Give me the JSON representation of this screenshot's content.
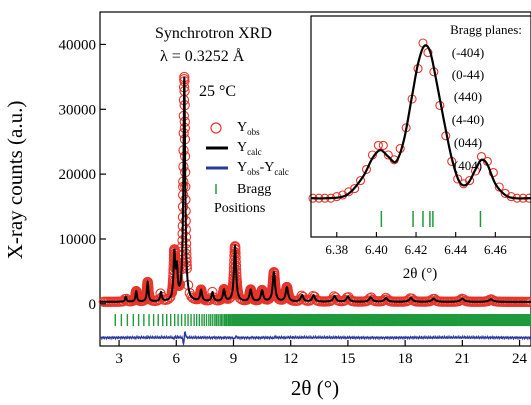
{
  "chart_data": [
    {
      "type": "line",
      "annotations": {
        "title": "Synchrotron XRD",
        "wavelength": "λ = 0.3252 Å",
        "temperature": "25 °C"
      },
      "xlabel": "2θ (°)",
      "ylabel": "X-ray counts (a.u.)",
      "xlim": [
        2,
        24.6
      ],
      "ylim": [
        -6500,
        45000
      ],
      "xticks": [
        3,
        6,
        9,
        12,
        15,
        18,
        21,
        24
      ],
      "yticks": [
        0,
        10000,
        20000,
        30000,
        40000
      ],
      "legend": {
        "placement": "top-right",
        "entries": [
          {
            "symbol": "circle",
            "main": "Y",
            "sub": "obs",
            "main2": "",
            "sub2": ""
          },
          {
            "symbol": "line-black",
            "main": "Y",
            "sub": "calc",
            "main2": "",
            "sub2": ""
          },
          {
            "symbol": "line-blue",
            "main": "Y",
            "sub": "obs",
            "main2": "-Y",
            "sub2": "calc"
          },
          {
            "symbol": "bar-green",
            "main": "Bragg",
            "sub": "",
            "main2": "",
            "sub2": ""
          },
          {
            "symbol": "none",
            "main": "Positions",
            "sub": "",
            "main2": "",
            "sub2": ""
          }
        ]
      },
      "colors": {
        "obs": "#e8352b",
        "calc": "#000000",
        "diff": "#2a3a9e",
        "bragg": "#1f9a3c"
      },
      "peaks": [
        {
          "x": 3.35,
          "y": 800
        },
        {
          "x": 3.9,
          "y": 1600
        },
        {
          "x": 4.5,
          "y": 3000
        },
        {
          "x": 5.2,
          "y": 1400
        },
        {
          "x": 5.9,
          "y": 7000
        },
        {
          "x": 6.03,
          "y": 4500
        },
        {
          "x": 6.42,
          "y": 34500
        },
        {
          "x": 7.3,
          "y": 1700
        },
        {
          "x": 7.9,
          "y": 1400
        },
        {
          "x": 8.5,
          "y": 1800
        },
        {
          "x": 9.08,
          "y": 8500
        },
        {
          "x": 9.9,
          "y": 1800
        },
        {
          "x": 10.5,
          "y": 1700
        },
        {
          "x": 11.12,
          "y": 4500
        },
        {
          "x": 11.8,
          "y": 2200
        },
        {
          "x": 12.6,
          "y": 1000
        },
        {
          "x": 13.2,
          "y": 1000
        },
        {
          "x": 14.3,
          "y": 900
        },
        {
          "x": 15.0,
          "y": 800
        },
        {
          "x": 16.2,
          "y": 700
        },
        {
          "x": 17.0,
          "y": 600
        },
        {
          "x": 18.3,
          "y": 600
        },
        {
          "x": 19.5,
          "y": 500
        },
        {
          "x": 21.0,
          "y": 500
        },
        {
          "x": 22.5,
          "y": 400
        }
      ],
      "baseline": 300,
      "bragg_tick_y": -2500,
      "difference_offset": -5200
    },
    {
      "type": "line",
      "inset": true,
      "xlabel": "2θ (°)",
      "xlim": [
        6.367,
        6.478
      ],
      "xticks": [
        6.38,
        6.4,
        6.42,
        6.44,
        6.46
      ],
      "ylim": [
        0,
        1.05
      ],
      "bragg_planes_title": "Bragg planes:",
      "bragg_planes": [
        "(-404)",
        "(0-44)",
        "(440)",
        "(4-40)",
        "(044)",
        "(404)"
      ],
      "bragg_positions": [
        6.4025,
        6.4185,
        6.4235,
        6.427,
        6.4285,
        6.4525
      ],
      "calc_x": [
        6.367,
        6.375,
        6.385,
        6.393,
        6.398,
        6.402,
        6.406,
        6.41,
        6.414,
        6.418,
        6.421,
        6.424,
        6.427,
        6.43,
        6.434,
        6.438,
        6.442,
        6.446,
        6.45,
        6.453,
        6.456,
        6.46,
        6.465,
        6.47,
        6.478
      ],
      "calc_y": [
        0.03,
        0.03,
        0.05,
        0.16,
        0.28,
        0.33,
        0.29,
        0.26,
        0.4,
        0.67,
        0.87,
        0.98,
        0.95,
        0.78,
        0.52,
        0.28,
        0.13,
        0.12,
        0.21,
        0.27,
        0.24,
        0.12,
        0.05,
        0.03,
        0.03
      ],
      "obs_x": [
        6.368,
        6.371,
        6.374,
        6.377,
        6.38,
        6.383,
        6.386,
        6.389,
        6.392,
        6.395,
        6.398,
        6.401,
        6.4035,
        6.406,
        6.409,
        6.412,
        6.415,
        6.418,
        6.421,
        6.4235,
        6.426,
        6.429,
        6.432,
        6.435,
        6.438,
        6.441,
        6.444,
        6.447,
        6.45,
        6.453,
        6.456,
        6.459,
        6.462,
        6.465,
        6.468,
        6.471,
        6.474,
        6.477
      ],
      "obs_y": [
        0.03,
        0.03,
        0.03,
        0.03,
        0.04,
        0.05,
        0.07,
        0.09,
        0.14,
        0.21,
        0.3,
        0.36,
        0.36,
        0.3,
        0.27,
        0.34,
        0.47,
        0.65,
        0.84,
        1.0,
        0.94,
        0.82,
        0.61,
        0.42,
        0.26,
        0.15,
        0.12,
        0.14,
        0.2,
        0.29,
        0.26,
        0.19,
        0.1,
        0.06,
        0.04,
        0.03,
        0.03,
        0.03
      ]
    }
  ]
}
